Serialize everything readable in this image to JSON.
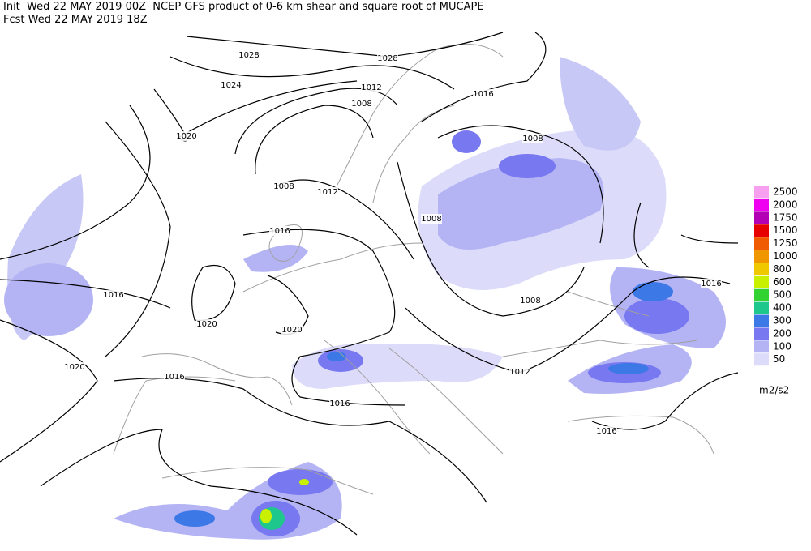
{
  "header": {
    "line1": "Init  Wed 22 MAY 2019 00Z  NCEP GFS product of 0-6 km shear and square root of MUCAPE",
    "line2": "Fcst Wed 22 MAY 2019 18Z"
  },
  "isobar_labels": [
    1028,
    1028,
    1024,
    1012,
    1008,
    1016,
    1020,
    1008,
    1008,
    1012,
    1008,
    1016,
    1016,
    1020,
    1020,
    1008,
    1016,
    1020,
    1016,
    1012,
    1016,
    1016
  ],
  "legend": {
    "unit": "m2/s2",
    "levels": [
      {
        "value": 2500,
        "color": "#f7a0f0"
      },
      {
        "value": 2000,
        "color": "#f000f0"
      },
      {
        "value": 1750,
        "color": "#b400b4"
      },
      {
        "value": 1500,
        "color": "#e60000"
      },
      {
        "value": 1250,
        "color": "#f05a00"
      },
      {
        "value": 1000,
        "color": "#f09600"
      },
      {
        "value": 800,
        "color": "#f0c800"
      },
      {
        "value": 600,
        "color": "#c8f000"
      },
      {
        "value": 500,
        "color": "#32d232"
      },
      {
        "value": 400,
        "color": "#1ec88c"
      },
      {
        "value": 300,
        "color": "#3c78e6"
      },
      {
        "value": 200,
        "color": "#7878f0"
      },
      {
        "value": 100,
        "color": "#b4b4f5"
      },
      {
        "value": 50,
        "color": "#dcdcfa"
      }
    ]
  }
}
